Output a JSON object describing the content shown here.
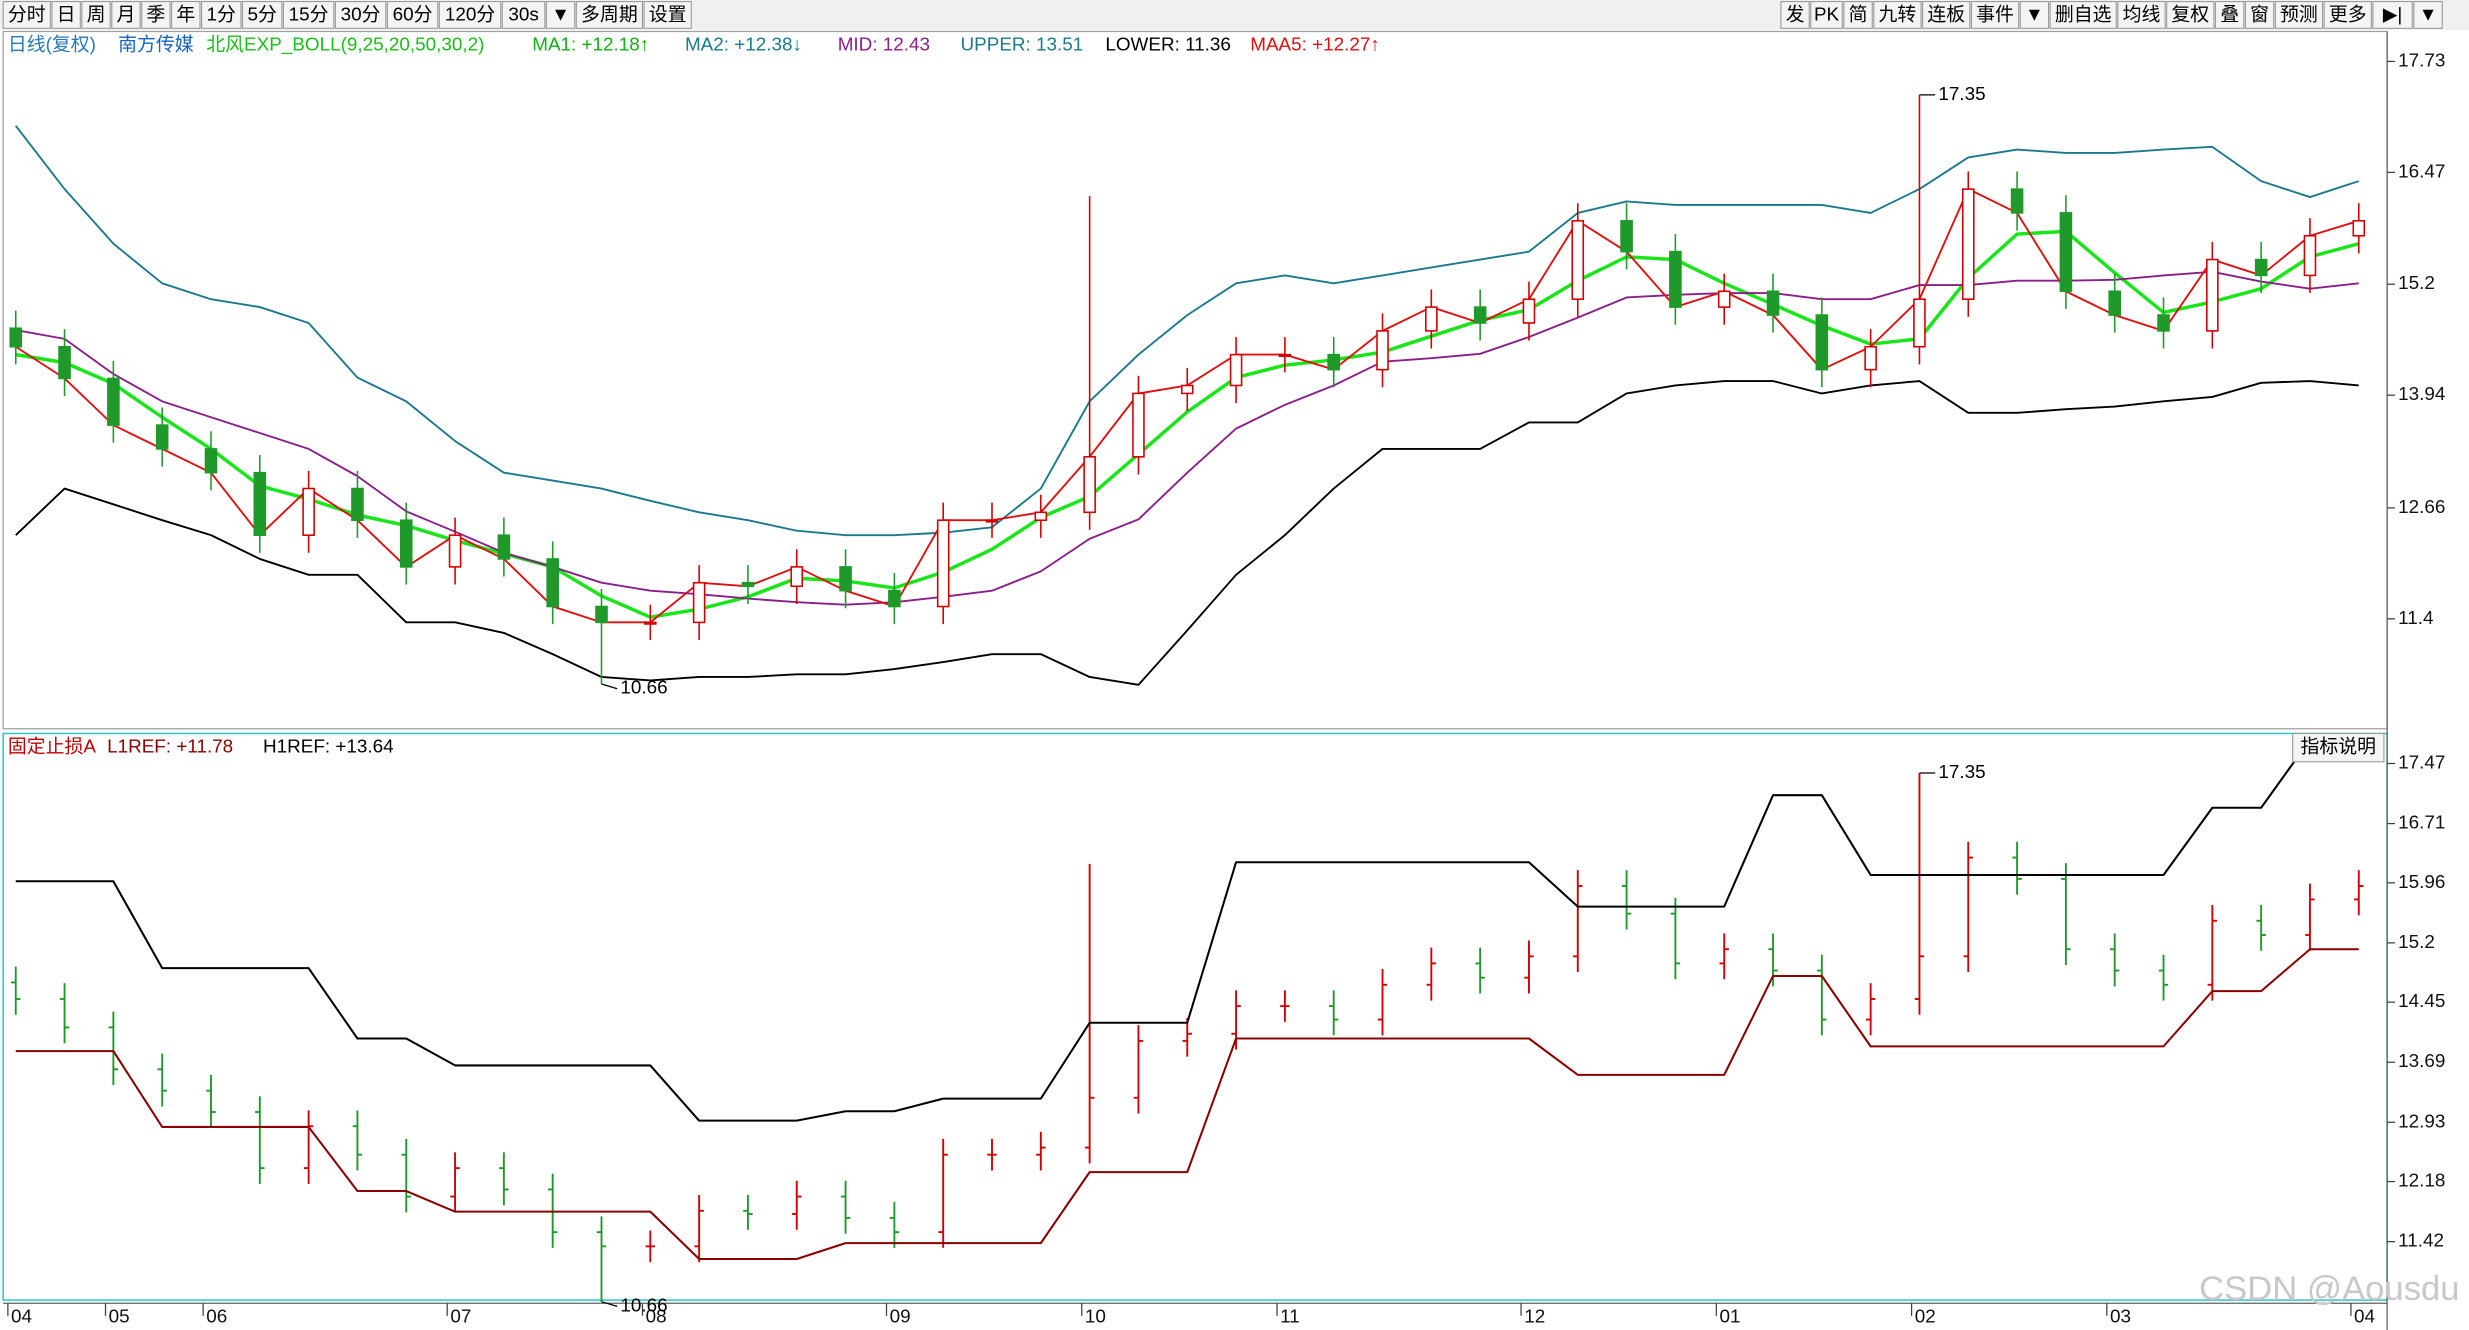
{
  "toolbar": {
    "left": [
      "分时",
      "日",
      "周",
      "月",
      "季",
      "年",
      "1分",
      "5分",
      "15分",
      "30分",
      "60分",
      "120分",
      "30s",
      "▼",
      "多周期",
      "设置"
    ],
    "right": [
      "发",
      "PK",
      "简",
      "九转",
      "连板",
      "事件",
      "▼",
      "删自选",
      "均线",
      "复权",
      "叠",
      "窗",
      "预测",
      "更多",
      "▶|",
      "▼"
    ]
  },
  "header": {
    "period": "日线(复权)",
    "stock": "南方传媒",
    "indicator": "北风EXP_BOLL(9,25,20,50,30,2)",
    "other_labels": [
      "MA2: +12.38↓"
    ]
  },
  "button": "指标说明",
  "watermark": "CSDN @Aousdu",
  "chart_data": [
    {
      "type": "candlestick",
      "categories": [
        "04",
        null,
        "05",
        null,
        "06",
        null,
        null,
        null,
        null,
        "07",
        null,
        null,
        null,
        "08",
        null,
        null,
        null,
        null,
        "09",
        null,
        null,
        null,
        "10",
        null,
        null,
        null,
        "11",
        null,
        null,
        null,
        null,
        "12",
        null,
        null,
        null,
        "01",
        null,
        null,
        null,
        "02",
        null,
        null,
        null,
        "03",
        null,
        null,
        null,
        null,
        "04"
      ],
      "open": [
        14.7,
        14.49,
        14.13,
        13.6,
        13.33,
        13.06,
        12.35,
        12.88,
        12.52,
        11.99,
        12.35,
        12.08,
        11.54,
        11.36,
        11.36,
        11.81,
        11.77,
        11.99,
        11.72,
        11.54,
        12.52,
        12.52,
        12.61,
        13.24,
        13.96,
        14.05,
        14.4,
        14.4,
        14.23,
        14.67,
        14.94,
        14.76,
        15.03,
        15.92,
        15.57,
        14.94,
        15.12,
        14.85,
        14.23,
        14.49,
        15.03,
        16.28,
        16.01,
        15.12,
        14.85,
        14.67,
        15.48,
        15.3,
        15.75
      ],
      "high": [
        14.9,
        14.69,
        14.33,
        13.8,
        13.53,
        13.26,
        13.08,
        13.08,
        12.72,
        12.55,
        12.55,
        12.28,
        11.74,
        11.56,
        12.01,
        12.01,
        12.19,
        12.19,
        11.92,
        12.72,
        12.72,
        12.81,
        16.2,
        14.16,
        14.25,
        14.6,
        14.6,
        14.6,
        14.87,
        15.14,
        15.14,
        15.23,
        16.12,
        16.12,
        15.77,
        15.32,
        15.32,
        15.05,
        14.69,
        17.35,
        16.48,
        16.48,
        16.21,
        15.32,
        15.05,
        15.68,
        15.68,
        15.95,
        16.12
      ],
      "low": [
        14.29,
        13.93,
        13.4,
        13.13,
        12.86,
        12.15,
        12.15,
        12.32,
        11.79,
        11.79,
        11.88,
        11.34,
        10.66,
        11.16,
        11.16,
        11.57,
        11.57,
        11.52,
        11.34,
        11.34,
        12.32,
        12.32,
        12.41,
        13.04,
        13.76,
        13.85,
        14.2,
        14.03,
        14.03,
        14.47,
        14.56,
        14.56,
        14.83,
        15.37,
        14.74,
        14.74,
        14.65,
        14.03,
        14.03,
        14.29,
        14.83,
        15.81,
        14.92,
        14.65,
        14.47,
        14.47,
        15.1,
        15.1,
        15.55
      ],
      "close": [
        14.49,
        14.13,
        13.6,
        13.33,
        13.06,
        12.35,
        12.88,
        12.52,
        11.99,
        12.35,
        12.08,
        11.54,
        11.36,
        11.36,
        11.81,
        11.77,
        11.99,
        11.72,
        11.54,
        12.52,
        12.52,
        12.61,
        13.24,
        13.96,
        14.05,
        14.4,
        14.4,
        14.23,
        14.67,
        14.94,
        14.76,
        15.03,
        15.92,
        15.57,
        14.94,
        15.12,
        14.85,
        14.23,
        14.49,
        15.03,
        16.28,
        16.01,
        15.12,
        14.85,
        14.67,
        15.48,
        15.3,
        15.75,
        15.92
      ],
      "up_color": "#d40000",
      "down_color": "#1f9a2a",
      "series": [
        {
          "name": "MA1: +12.18↑",
          "color": "#19e619",
          "values": [
            14.4,
            14.31,
            14.07,
            13.69,
            13.33,
            12.91,
            12.76,
            12.58,
            12.46,
            12.29,
            12.14,
            11.99,
            11.66,
            11.42,
            11.51,
            11.65,
            11.86,
            11.83,
            11.75,
            11.93,
            12.19,
            12.55,
            12.79,
            13.27,
            13.75,
            14.14,
            14.28,
            14.34,
            14.43,
            14.61,
            14.79,
            14.91,
            15.24,
            15.51,
            15.48,
            15.21,
            14.97,
            14.73,
            14.52,
            14.58,
            15.27,
            15.77,
            15.8,
            15.33,
            14.88,
            15.0,
            15.15,
            15.51,
            15.66
          ]
        },
        {
          "name": "MID: 12.43",
          "color": "#8a1f8a",
          "values": [
            14.68,
            14.58,
            14.18,
            13.87,
            13.69,
            13.51,
            13.33,
            13.02,
            12.62,
            12.39,
            12.15,
            11.99,
            11.81,
            11.72,
            11.68,
            11.63,
            11.59,
            11.56,
            11.59,
            11.65,
            11.72,
            11.94,
            12.31,
            12.53,
            13.06,
            13.56,
            13.83,
            14.05,
            14.32,
            14.36,
            14.41,
            14.6,
            14.82,
            15.05,
            15.08,
            15.1,
            15.1,
            15.03,
            15.03,
            15.19,
            15.19,
            15.24,
            15.24,
            15.25,
            15.3,
            15.34,
            15.23,
            15.15,
            15.21
          ]
        },
        {
          "name": "UPPER: 13.51",
          "color": "#1a7a8c",
          "values": [
            17.0,
            16.28,
            15.66,
            15.21,
            15.03,
            14.94,
            14.76,
            14.14,
            13.87,
            13.42,
            13.06,
            12.97,
            12.88,
            12.74,
            12.61,
            12.52,
            12.4,
            12.35,
            12.35,
            12.38,
            12.44,
            12.88,
            13.87,
            14.4,
            14.85,
            15.21,
            15.3,
            15.21,
            15.3,
            15.39,
            15.48,
            15.57,
            16.01,
            16.14,
            16.1,
            16.1,
            16.1,
            16.1,
            16.01,
            16.28,
            16.64,
            16.73,
            16.69,
            16.69,
            16.73,
            16.76,
            16.37,
            16.19,
            16.37
          ]
        },
        {
          "name": "LOWER: 11.36",
          "color": "#000000",
          "values": [
            12.35,
            12.88,
            12.7,
            12.52,
            12.35,
            12.08,
            11.9,
            11.9,
            11.36,
            11.36,
            11.24,
            11.0,
            10.74,
            10.7,
            10.74,
            10.74,
            10.77,
            10.77,
            10.83,
            10.91,
            11.0,
            11.0,
            10.74,
            10.65,
            11.27,
            11.9,
            12.35,
            12.88,
            13.33,
            13.33,
            13.33,
            13.63,
            13.63,
            13.96,
            14.05,
            14.1,
            14.1,
            13.96,
            14.05,
            14.1,
            13.74,
            13.74,
            13.78,
            13.81,
            13.87,
            13.92,
            14.08,
            14.1,
            14.05
          ]
        },
        {
          "name": "MAA5: +12.27↑",
          "color": "#e01010",
          "values": [
            14.49,
            14.13,
            13.6,
            13.33,
            13.06,
            12.35,
            12.88,
            12.52,
            11.99,
            12.35,
            12.08,
            11.54,
            11.36,
            11.36,
            11.81,
            11.77,
            11.99,
            11.72,
            11.54,
            12.52,
            12.52,
            12.61,
            13.24,
            13.96,
            14.05,
            14.4,
            14.4,
            14.23,
            14.67,
            14.94,
            14.76,
            15.03,
            15.92,
            15.57,
            14.94,
            15.12,
            14.85,
            14.23,
            14.49,
            15.03,
            16.28,
            16.01,
            15.12,
            14.85,
            14.67,
            15.48,
            15.3,
            15.75,
            15.92
          ]
        }
      ],
      "extremes": [
        17.35,
        10.66
      ],
      "ylim": [
        10.17,
        18.07
      ],
      "yticks": [
        11.4,
        12.66,
        13.94,
        15.2,
        16.47,
        17.73
      ],
      "grid": false
    },
    {
      "type": "stop_lines",
      "title": "固定止损A",
      "series": [
        {
          "name": "L1REF: +11.78",
          "color": "#8b0000",
          "values": [
            13.83,
            13.83,
            13.83,
            12.87,
            12.87,
            12.87,
            12.87,
            12.06,
            12.06,
            11.8,
            11.8,
            11.8,
            11.8,
            11.8,
            11.2,
            11.2,
            11.2,
            11.4,
            11.4,
            11.4,
            11.4,
            11.4,
            12.3,
            12.3,
            12.3,
            13.99,
            13.99,
            13.99,
            13.99,
            13.99,
            13.99,
            13.99,
            13.53,
            13.53,
            13.53,
            13.53,
            14.78,
            14.78,
            13.89,
            13.89,
            13.89,
            13.89,
            13.89,
            13.89,
            13.89,
            14.59,
            14.59,
            15.12,
            15.12
          ]
        },
        {
          "name": "H1REF: +13.64",
          "color": "#000000",
          "values": [
            15.98,
            15.98,
            15.98,
            14.88,
            14.88,
            14.88,
            14.88,
            13.99,
            13.99,
            13.65,
            13.65,
            13.65,
            13.65,
            13.65,
            12.95,
            12.95,
            12.95,
            13.07,
            13.07,
            13.23,
            13.23,
            13.23,
            14.19,
            14.19,
            14.19,
            16.22,
            16.22,
            16.22,
            16.22,
            16.22,
            16.22,
            16.22,
            15.66,
            15.66,
            15.66,
            15.66,
            17.07,
            17.07,
            16.06,
            16.06,
            16.06,
            16.06,
            16.06,
            16.06,
            16.06,
            16.91,
            16.91,
            17.77,
            null
          ]
        }
      ],
      "extremes": [
        17.35,
        10.66
      ],
      "ylim": [
        10.68,
        17.85
      ],
      "yticks": [
        11.42,
        12.18,
        12.93,
        13.69,
        14.45,
        15.2,
        15.96,
        16.71,
        17.47
      ],
      "grid": false
    }
  ]
}
